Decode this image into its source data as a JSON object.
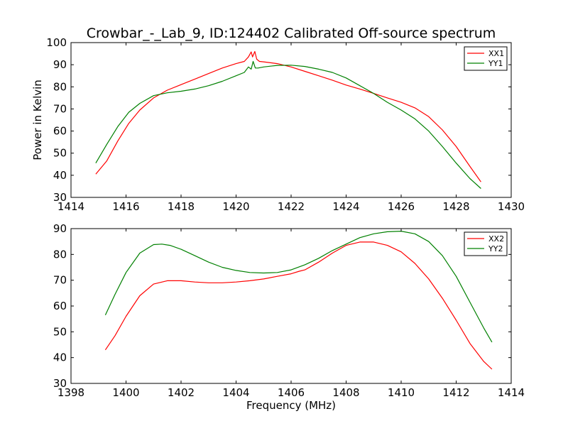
{
  "chart_data": [
    {
      "type": "line",
      "title": "Crowbar_-_Lab_9, ID:124402 Calibrated Off-source spectrum",
      "xlabel": "",
      "ylabel": "Power in Kelvin",
      "xlim": [
        1414,
        1430
      ],
      "ylim": [
        30,
        100
      ],
      "xticks": [
        "1414",
        "1416",
        "1418",
        "1420",
        "1422",
        "1424",
        "1426",
        "1428",
        "1430"
      ],
      "yticks": [
        "30",
        "40",
        "50",
        "60",
        "70",
        "80",
        "90",
        "100"
      ],
      "legend": "top-right",
      "series": [
        {
          "name": "XX1",
          "color": "#ff0000",
          "x": [
            1414.9,
            1415.3,
            1415.7,
            1416.1,
            1416.5,
            1417.0,
            1417.5,
            1418.0,
            1418.5,
            1419.0,
            1419.5,
            1420.0,
            1420.3,
            1420.45,
            1420.55,
            1420.6,
            1420.68,
            1420.75,
            1420.85,
            1421.0,
            1421.5,
            1422.0,
            1422.5,
            1423.0,
            1423.5,
            1424.0,
            1424.5,
            1425.0,
            1425.5,
            1426.0,
            1426.5,
            1427.0,
            1427.5,
            1428.0,
            1428.5,
            1428.9
          ],
          "y": [
            40.5,
            46.5,
            55.5,
            63.5,
            69.5,
            75.0,
            78.5,
            81.0,
            83.5,
            86.0,
            88.5,
            90.5,
            91.5,
            93.5,
            95.8,
            93.5,
            96.0,
            92.5,
            91.5,
            91.3,
            90.5,
            89.0,
            87.0,
            85.0,
            83.0,
            80.8,
            79.0,
            77.0,
            75.0,
            73.0,
            70.5,
            66.5,
            60.5,
            53.0,
            44.0,
            37.0
          ]
        },
        {
          "name": "YY1",
          "color": "#008000",
          "x": [
            1414.9,
            1415.3,
            1415.7,
            1416.1,
            1416.5,
            1417.0,
            1417.5,
            1418.0,
            1418.5,
            1419.0,
            1419.5,
            1420.0,
            1420.3,
            1420.45,
            1420.55,
            1420.62,
            1420.7,
            1420.8,
            1421.0,
            1421.5,
            1422.0,
            1422.5,
            1423.0,
            1423.5,
            1424.0,
            1424.5,
            1425.0,
            1425.5,
            1426.0,
            1426.5,
            1427.0,
            1427.5,
            1428.0,
            1428.5,
            1428.9
          ],
          "y": [
            45.5,
            54.0,
            62.0,
            68.5,
            72.5,
            76.0,
            77.3,
            78.0,
            79.0,
            80.5,
            82.5,
            85.0,
            86.5,
            89.0,
            88.0,
            91.5,
            88.5,
            88.5,
            89.0,
            89.7,
            89.8,
            89.2,
            88.0,
            86.5,
            84.0,
            80.5,
            77.0,
            73.0,
            69.5,
            65.5,
            60.0,
            53.0,
            45.5,
            38.5,
            34.0
          ]
        }
      ]
    },
    {
      "type": "line",
      "title": "",
      "xlabel": "Frequency (MHz)",
      "ylabel": "",
      "xlim": [
        1398,
        1414
      ],
      "ylim": [
        30,
        90
      ],
      "xticks": [
        "1398",
        "1400",
        "1402",
        "1404",
        "1406",
        "1408",
        "1410",
        "1412",
        "1414"
      ],
      "yticks": [
        "30",
        "40",
        "50",
        "60",
        "70",
        "80",
        "90"
      ],
      "legend": "top-right",
      "series": [
        {
          "name": "XX2",
          "color": "#ff0000",
          "x": [
            1399.25,
            1399.6,
            1400.0,
            1400.5,
            1401.0,
            1401.5,
            1402.0,
            1402.5,
            1403.0,
            1403.5,
            1404.0,
            1404.5,
            1405.0,
            1405.5,
            1406.0,
            1406.3,
            1406.5,
            1407.0,
            1407.5,
            1408.0,
            1408.5,
            1409.0,
            1409.5,
            1410.0,
            1410.5,
            1411.0,
            1411.5,
            1412.0,
            1412.5,
            1413.0,
            1413.3
          ],
          "y": [
            43.0,
            48.5,
            56.0,
            64.0,
            68.5,
            69.8,
            69.8,
            69.3,
            69.0,
            69.0,
            69.3,
            69.8,
            70.5,
            71.5,
            72.5,
            73.5,
            74.0,
            77.0,
            80.5,
            83.5,
            84.8,
            84.8,
            83.5,
            81.0,
            76.5,
            70.5,
            63.0,
            54.5,
            45.5,
            38.5,
            35.5
          ]
        },
        {
          "name": "YY2",
          "color": "#008000",
          "x": [
            1399.25,
            1399.6,
            1400.0,
            1400.5,
            1401.0,
            1401.3,
            1401.6,
            1402.0,
            1402.5,
            1403.0,
            1403.5,
            1404.0,
            1404.5,
            1405.0,
            1405.5,
            1406.0,
            1406.5,
            1407.0,
            1407.5,
            1408.0,
            1408.5,
            1409.0,
            1409.5,
            1410.0,
            1410.5,
            1411.0,
            1411.5,
            1412.0,
            1412.5,
            1413.0,
            1413.3
          ],
          "y": [
            56.5,
            64.5,
            73.0,
            80.5,
            83.8,
            84.0,
            83.5,
            82.0,
            79.5,
            77.0,
            75.0,
            73.8,
            73.0,
            72.8,
            73.0,
            74.0,
            76.0,
            78.5,
            81.5,
            84.0,
            86.5,
            88.0,
            88.8,
            89.0,
            88.0,
            85.0,
            79.5,
            71.5,
            61.5,
            51.5,
            46.0
          ]
        }
      ]
    }
  ]
}
